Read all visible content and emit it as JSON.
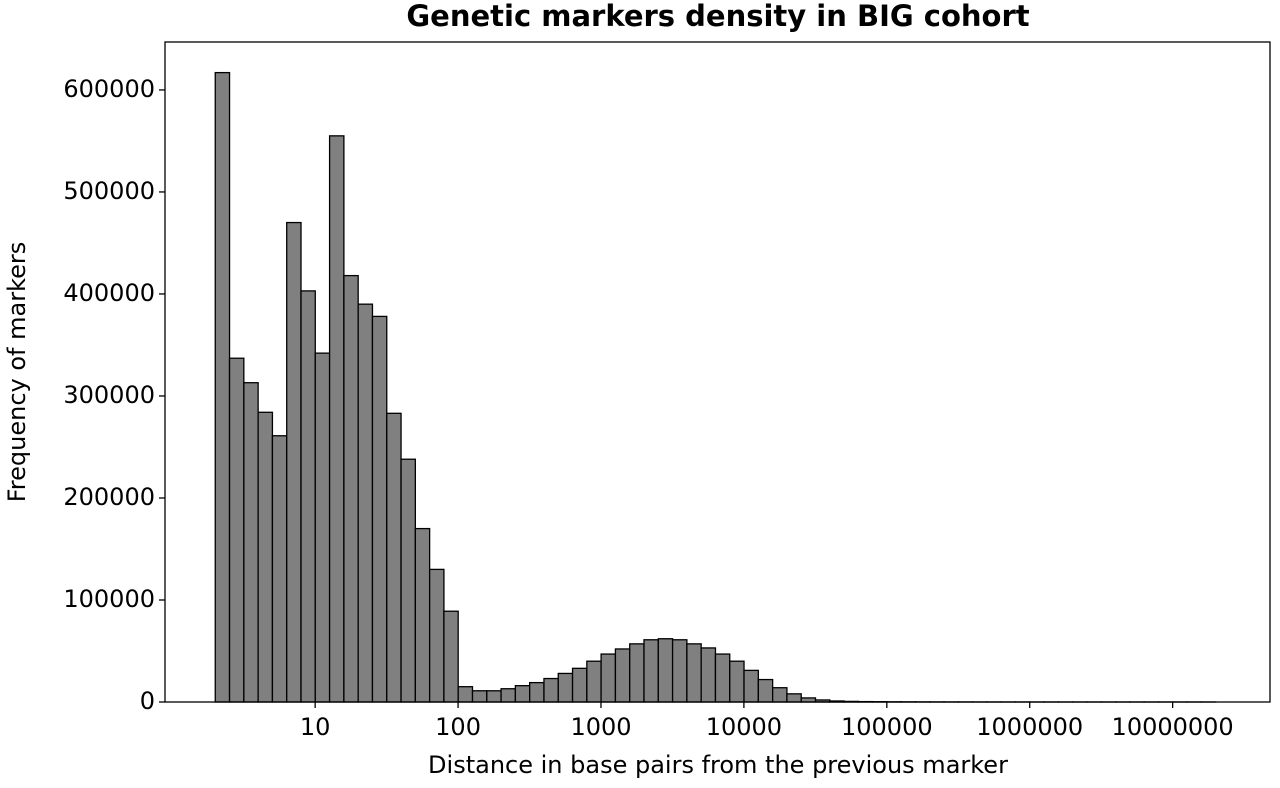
{
  "chart_data": {
    "type": "histogram",
    "title": "Genetic markers density in BIG cohort",
    "x_label": "Distance in base pairs from the previous marker",
    "y_label": "Frequency of markers",
    "bins": [
      2,
      2.518,
      3.17,
      3.991,
      5.024,
      6.325,
      7.962,
      10.02,
      12.62,
      15.89,
      20,
      25.18,
      31.7,
      39.91,
      50.24,
      63.25,
      79.62,
      100.2,
      126.2,
      158.9,
      200,
      251.8,
      317,
      399.1,
      502.4,
      632.5,
      796.2,
      1002,
      1262,
      1589,
      2000,
      2518,
      3170,
      3991,
      5024,
      6325,
      7962,
      10020,
      12620,
      15890,
      20000,
      25180,
      31700,
      39910,
      50240,
      63250,
      79620,
      100200,
      126200,
      158900,
      200000,
      251800,
      317000,
      399100,
      502400,
      632500,
      796200,
      1002000,
      1262000,
      1589000,
      2000000,
      2518000,
      3170000,
      3991000,
      5024000,
      6325000,
      7962000,
      10020000,
      12620000,
      15890000,
      20000000
    ],
    "values": [
      617000,
      337000,
      313000,
      284000,
      261000,
      470000,
      403000,
      342000,
      555000,
      418000,
      390000,
      378000,
      283000,
      238000,
      170000,
      130000,
      89000,
      15000,
      11000,
      11000,
      13000,
      16000,
      19000,
      23000,
      28000,
      33000,
      40000,
      47000,
      52000,
      57000,
      61000,
      62000,
      61000,
      57000,
      53000,
      47000,
      40000,
      31000,
      22000,
      14000,
      8000,
      4000,
      2000,
      1000,
      600,
      400,
      300,
      200,
      150,
      100,
      80,
      60,
      50,
      40,
      30,
      30,
      20,
      20,
      20,
      10,
      10,
      10,
      10,
      10,
      10,
      10,
      10,
      10,
      10,
      10
    ],
    "color": "#808080",
    "edgecolor": "#000000",
    "xscale": "log",
    "xlim": [
      0.89,
      48000000
    ],
    "xticks": [
      10,
      100,
      1000,
      10000,
      100000,
      1000000,
      10000000
    ],
    "ylim": [
      0,
      647000
    ],
    "yticks": [
      0,
      100000,
      200000,
      300000,
      400000,
      500000,
      600000
    ],
    "grid": false
  }
}
